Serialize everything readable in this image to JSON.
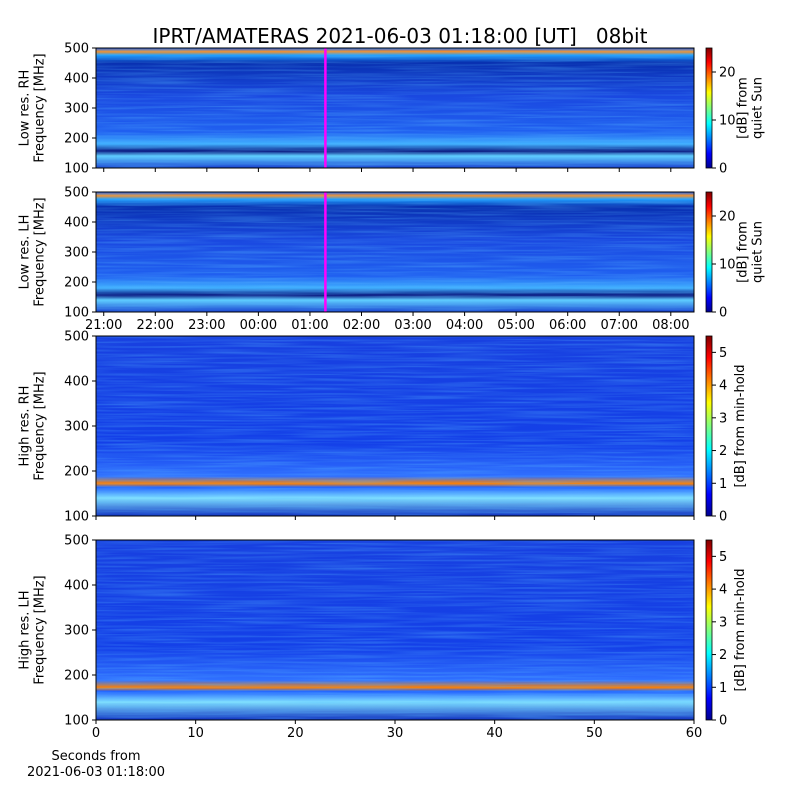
{
  "chart_data": [
    {
      "type": "spectrogram",
      "title": "IPRT/AMATERAS 2021-06-03 01:18:00 [UT]   08bit",
      "ylabel": [
        "Low res. RH",
        "Frequency [MHz]"
      ],
      "ylim": [
        100,
        500
      ],
      "yticks": [
        100,
        200,
        300,
        400,
        500
      ],
      "xlim": [
        "20:51",
        "08:27"
      ],
      "xticks": [
        "21:00",
        "22:00",
        "23:00",
        "00:00",
        "01:00",
        "02:00",
        "03:00",
        "04:00",
        "05:00",
        "06:00",
        "07:00",
        "08:00"
      ],
      "show_xtick_labels": false,
      "marker": "01:18",
      "marker_color": "#ff00ff",
      "colorbar_label": [
        "[dB] from",
        "quiet Sun"
      ],
      "clim": [
        0,
        25
      ],
      "cticks": [
        0,
        10,
        20
      ]
    },
    {
      "type": "spectrogram",
      "ylabel": [
        "Low res. LH",
        "Frequency [MHz]"
      ],
      "ylim": [
        100,
        500
      ],
      "yticks": [
        100,
        200,
        300,
        400,
        500
      ],
      "xlim": [
        "20:51",
        "08:27"
      ],
      "xticks": [
        "21:00",
        "22:00",
        "23:00",
        "00:00",
        "01:00",
        "02:00",
        "03:00",
        "04:00",
        "05:00",
        "06:00",
        "07:00",
        "08:00"
      ],
      "show_xtick_labels": true,
      "marker": "01:18",
      "marker_color": "#ff00ff",
      "colorbar_label": [
        "[dB] from",
        "quiet Sun"
      ],
      "clim": [
        0,
        25
      ],
      "cticks": [
        0,
        10,
        20
      ]
    },
    {
      "type": "spectrogram",
      "ylabel": [
        "High res. RH",
        "Frequency [MHz]"
      ],
      "ylim": [
        100,
        500
      ],
      "yticks": [
        100,
        200,
        300,
        400,
        500
      ],
      "xlim": [
        0,
        60
      ],
      "xticks": [
        0,
        10,
        20,
        30,
        40,
        50,
        60
      ],
      "show_xtick_labels": false,
      "colorbar_label": [
        "[dB] from min-hold"
      ],
      "clim": [
        0,
        5.5
      ],
      "cticks": [
        0,
        1,
        2,
        3,
        4,
        5
      ]
    },
    {
      "type": "spectrogram",
      "ylabel": [
        "High res. LH",
        "Frequency [MHz]"
      ],
      "ylim": [
        100,
        500
      ],
      "yticks": [
        100,
        200,
        300,
        400,
        500
      ],
      "xlim": [
        0,
        60
      ],
      "xticks": [
        0,
        10,
        20,
        30,
        40,
        50,
        60
      ],
      "show_xtick_labels": true,
      "xlabel": [
        "Seconds from",
        "2021-06-03 01:18:00"
      ],
      "colorbar_label": [
        "[dB] from min-hold"
      ],
      "clim": [
        0,
        5.5
      ],
      "cticks": [
        0,
        1,
        2,
        3,
        4,
        5
      ]
    }
  ]
}
